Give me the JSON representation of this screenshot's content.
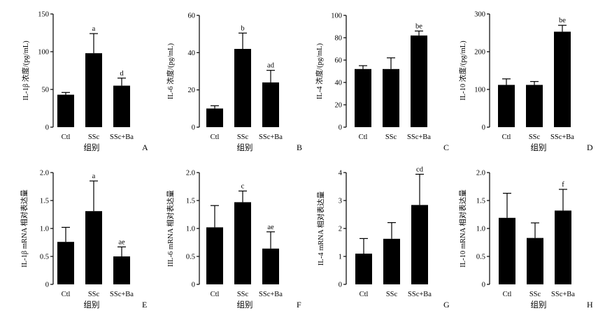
{
  "chart_data": [
    {
      "type": "bar",
      "panel": "A",
      "categories": [
        "Ctl",
        "SSc",
        "SSc+Ba"
      ],
      "values": [
        43,
        98,
        55
      ],
      "errors": [
        3,
        26,
        10
      ],
      "significance": [
        "",
        "a",
        "d"
      ],
      "ylabel": "IL-1β 浓度/(pg/mL)",
      "xlabel": "组别",
      "ylim": [
        0,
        150
      ],
      "yticks": [
        0,
        50,
        100,
        150
      ]
    },
    {
      "type": "bar",
      "panel": "B",
      "categories": [
        "Ctl",
        "SSc",
        "SSc+Ba"
      ],
      "values": [
        10,
        42,
        24
      ],
      "errors": [
        1.5,
        8.5,
        6.5
      ],
      "significance": [
        "",
        "b",
        "ad"
      ],
      "ylabel": "IL-6 浓度/(pg/mL)",
      "xlabel": "组别",
      "ylim": [
        0,
        60
      ],
      "yticks": [
        0,
        20,
        40,
        60
      ]
    },
    {
      "type": "bar",
      "panel": "C",
      "categories": [
        "Ctl",
        "SSc",
        "SSc+Ba"
      ],
      "values": [
        52,
        52,
        82
      ],
      "errors": [
        3,
        10,
        4
      ],
      "significance": [
        "",
        "",
        "be"
      ],
      "ylabel": "IL-4 浓度/(pg/mL)",
      "xlabel": "",
      "ylim": [
        0,
        100
      ],
      "yticks": [
        0,
        20,
        40,
        60,
        80,
        100
      ]
    },
    {
      "type": "bar",
      "panel": "D",
      "categories": [
        "Ctl",
        "SSc",
        "SSc+Ba"
      ],
      "values": [
        112,
        112,
        253
      ],
      "errors": [
        16,
        9,
        17
      ],
      "significance": [
        "",
        "",
        "be"
      ],
      "ylabel": "IL-10 浓度/(pg/mL)",
      "xlabel": "组别",
      "ylim": [
        0,
        300
      ],
      "yticks": [
        0,
        100,
        200,
        300
      ]
    },
    {
      "type": "bar",
      "panel": "E",
      "categories": [
        "Ctl",
        "SSc",
        "SSc+Ba"
      ],
      "values": [
        0.76,
        1.31,
        0.5
      ],
      "errors": [
        0.26,
        0.54,
        0.17
      ],
      "significance": [
        "",
        "a",
        "ae"
      ],
      "ylabel": "IL-1β mRNA 相对表达量",
      "xlabel": "组别",
      "ylim": [
        0,
        2.0
      ],
      "yticks": [
        "0",
        "0.5",
        "1.0",
        "1.5",
        "2.0"
      ]
    },
    {
      "type": "bar",
      "panel": "F",
      "categories": [
        "Ctl",
        "SSc",
        "SSc+Ba"
      ],
      "values": [
        1.02,
        1.47,
        0.64
      ],
      "errors": [
        0.39,
        0.2,
        0.3
      ],
      "significance": [
        "",
        "c",
        "ae"
      ],
      "ylabel": "IIL-6 mRNA 相对表达量",
      "xlabel": "组别",
      "ylim": [
        0,
        2.0
      ],
      "yticks": [
        "0",
        "0.5",
        "1.0",
        "1.5",
        "2.0"
      ]
    },
    {
      "type": "bar",
      "panel": "G",
      "categories": [
        "Ctl",
        "SSc",
        "SSc+Ba"
      ],
      "values": [
        1.1,
        1.63,
        2.84
      ],
      "errors": [
        0.54,
        0.58,
        1.1
      ],
      "significance": [
        "",
        "",
        "cd"
      ],
      "ylabel": "IL-4 mRNA 相对表达量",
      "xlabel": "",
      "ylim": [
        0,
        4
      ],
      "yticks": [
        "0",
        "1",
        "2",
        "3",
        "4"
      ]
    },
    {
      "type": "bar",
      "panel": "H",
      "categories": [
        "Ctl",
        "SSc",
        "SSc+Ba"
      ],
      "values": [
        1.19,
        0.83,
        1.32
      ],
      "errors": [
        0.44,
        0.27,
        0.38
      ],
      "significance": [
        "",
        "",
        "f"
      ],
      "ylabel": "IL-10 mRNA 相对表达量",
      "xlabel": "组别",
      "ylim": [
        0,
        2.0
      ],
      "yticks": [
        "0",
        "0.5",
        "1.0",
        "1.5",
        "2.0"
      ]
    }
  ]
}
